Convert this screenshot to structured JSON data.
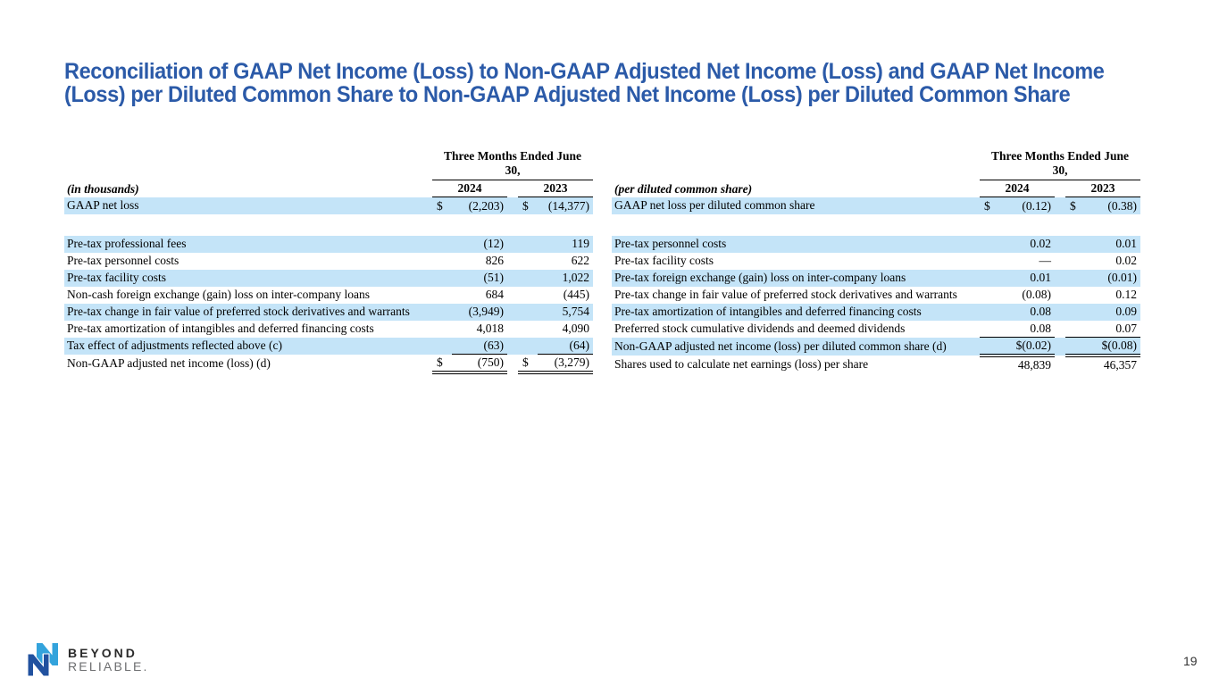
{
  "colors": {
    "title_blue": "#2B5AA8",
    "row_blue": "#C4E4F8",
    "logo_dark_blue": "#21519F",
    "logo_light_blue": "#33A3DC"
  },
  "slide": {
    "title_line1": "Reconciliation of GAAP Net Income (Loss) to Non-GAAP Adjusted Net Income (Loss) and GAAP Net Income",
    "title_line2": "(Loss) per Diluted Common Share to Non-GAAP Adjusted Net Income (Loss) per Diluted Common Share",
    "page_number": "19"
  },
  "logo": {
    "line1": "BEYOND",
    "line2": "RELIABLE."
  },
  "left_table": {
    "unit_label": "(in thousands)",
    "period_header": "Three Months Ended June 30,",
    "years": [
      "2024",
      "2023"
    ],
    "rows": [
      {
        "label": "GAAP net loss",
        "cur1": "$",
        "val1": "(2,203)",
        "cur2": "$",
        "val2": "(14,377)",
        "shaded": true
      },
      {
        "gap": true
      },
      {
        "label": "Pre-tax professional fees",
        "val1": "(12)",
        "val2": "119",
        "shaded": true
      },
      {
        "label": "Pre-tax personnel costs",
        "val1": "826",
        "val2": "622"
      },
      {
        "label": "Pre-tax facility costs",
        "val1": "(51)",
        "val2": "1,022",
        "shaded": true
      },
      {
        "label": "Non-cash foreign exchange (gain) loss on inter-company loans",
        "val1": "684",
        "val2": "(445)"
      },
      {
        "label": "Pre-tax change in fair value of preferred stock derivatives and warrants",
        "val1": "(3,949)",
        "val2": "5,754",
        "shaded": true
      },
      {
        "label": "Pre-tax amortization of intangibles and deferred financing costs",
        "val1": "4,018",
        "val2": "4,090"
      },
      {
        "label": "Tax effect of adjustments reflected above (c)",
        "val1": "(63)",
        "val2": "(64)",
        "shaded": true,
        "rule": "single"
      },
      {
        "label": "Non-GAAP adjusted net income (loss)  (d)",
        "cur1": "$",
        "val1": "(750)",
        "cur2": "$",
        "val2": "(3,279)",
        "rule": "double"
      }
    ]
  },
  "right_table": {
    "unit_label": "(per diluted common share)",
    "period_header": "Three Months Ended June 30,",
    "years": [
      "2024",
      "2023"
    ],
    "rows": [
      {
        "label": "GAAP net loss per diluted common share",
        "cur1": "$",
        "val1": "(0.12)",
        "cur2": "$",
        "val2": "(0.38)",
        "shaded": true
      },
      {
        "gap": true
      },
      {
        "label": "Pre-tax personnel costs",
        "val1": "0.02",
        "val2": "0.01",
        "shaded": true
      },
      {
        "label": "Pre-tax facility costs",
        "val1": "—",
        "val2": "0.02"
      },
      {
        "label": "Pre-tax foreign exchange (gain) loss on inter-company loans",
        "val1": "0.01",
        "val2": "(0.01)",
        "shaded": true
      },
      {
        "label": "Pre-tax change in fair value of preferred stock derivatives and warrants",
        "val1": "(0.08)",
        "val2": "0.12"
      },
      {
        "label": "Pre-tax amortization of intangibles and deferred financing costs",
        "val1": "0.08",
        "val2": "0.09",
        "shaded": true
      },
      {
        "label": "Preferred stock cumulative dividends and deemed dividends",
        "val1": "0.08",
        "val2": "0.07",
        "rule": "single",
        "rule_span": "both"
      },
      {
        "label": "Non-GAAP adjusted net income (loss) per diluted common share  (d)",
        "val1": "$(0.02)",
        "val2": "$(0.08)",
        "shaded": true,
        "rule": "double"
      },
      {
        "label": "Shares used to calculate net earnings (loss) per share",
        "val1": "48,839",
        "val2": "46,357"
      }
    ]
  }
}
